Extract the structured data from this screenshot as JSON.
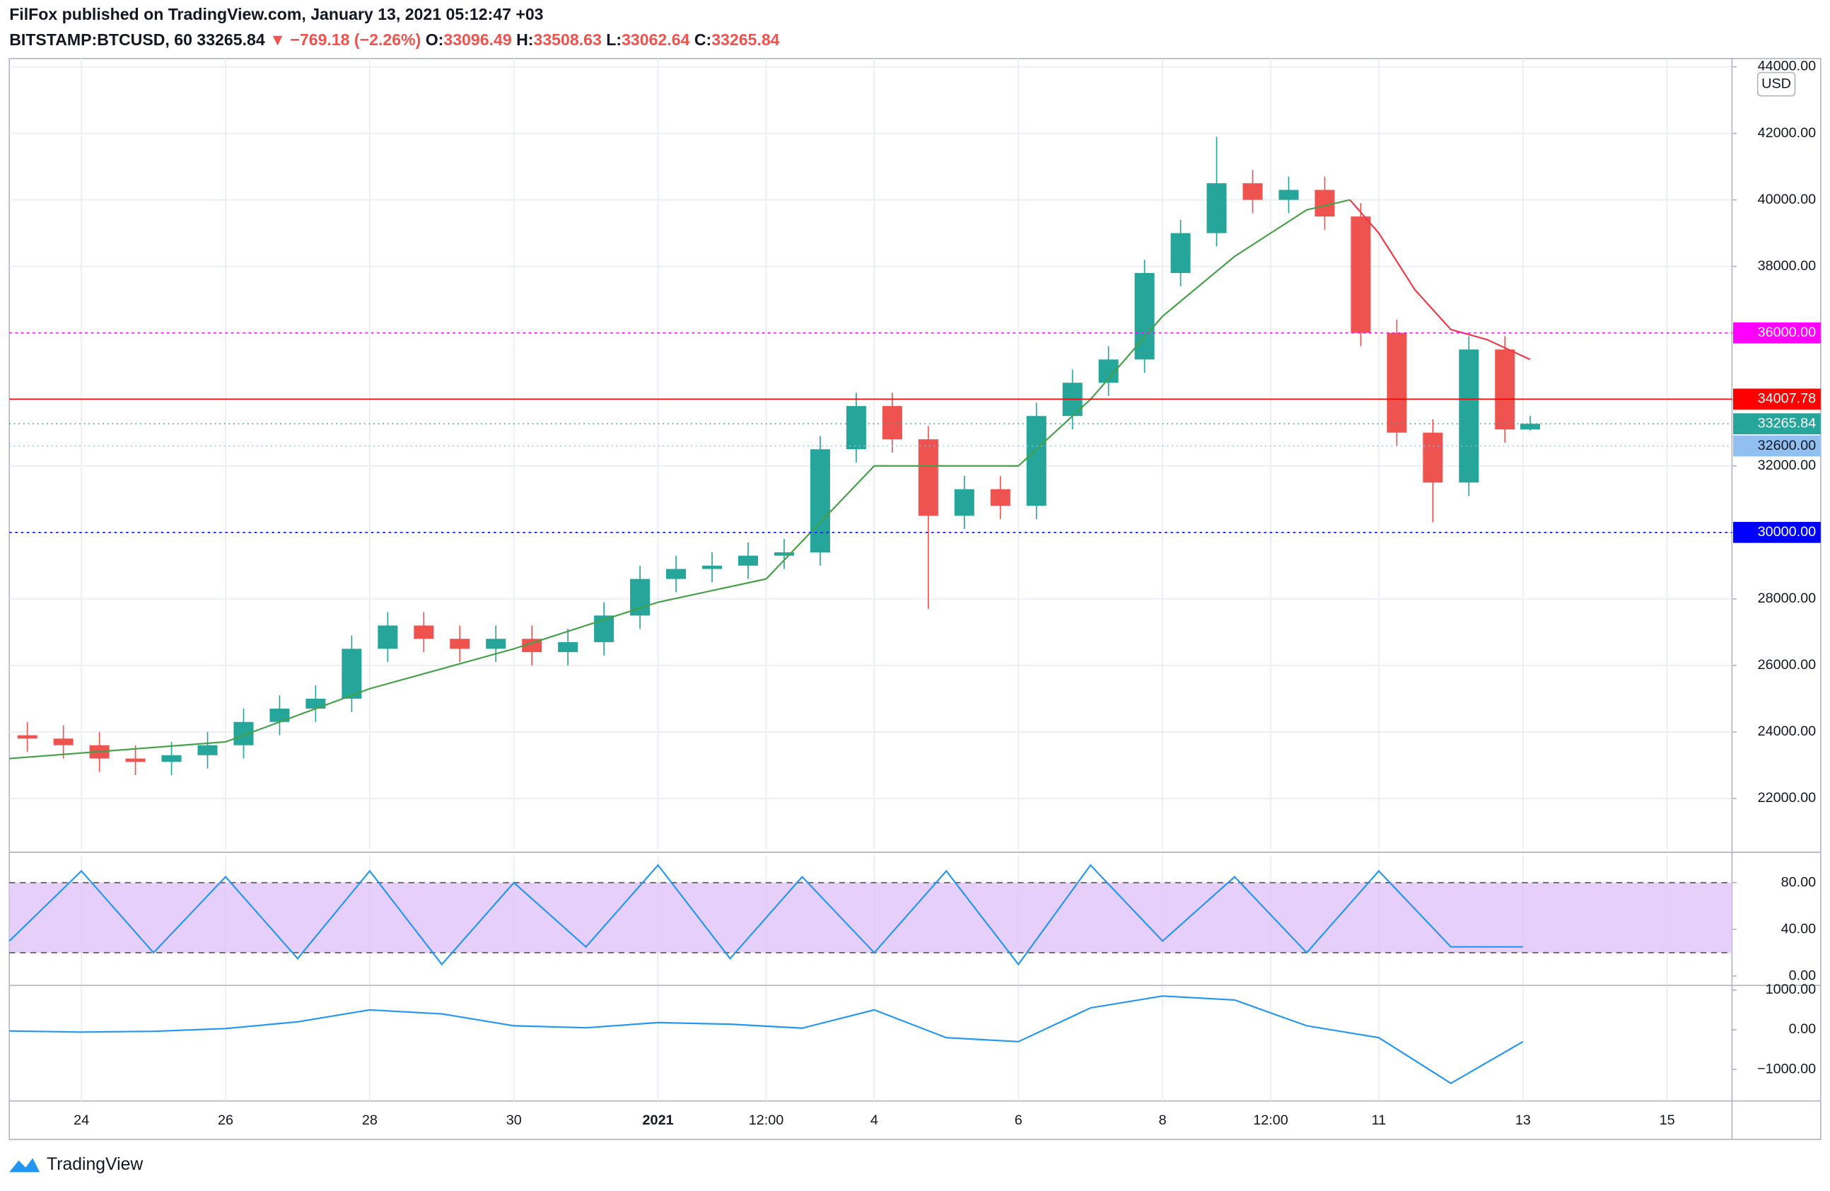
{
  "header": {
    "title": "FilFox published on TradingView.com, January 13, 2021 05:12:47 +03",
    "symbol": "BITSTAMP:BTCUSD, 60",
    "last": "33265.84",
    "change": "▼ −769.18 (−2.26%)",
    "ohlc": [
      {
        "label": "O:",
        "value": "33096.49"
      },
      {
        "label": "H:",
        "value": "33508.63"
      },
      {
        "label": "L:",
        "value": "33062.64"
      },
      {
        "label": "C:",
        "value": "33265.84"
      }
    ]
  },
  "footer": "TradingView",
  "chart_data": [
    {
      "type": "candlestick",
      "currency": "USD",
      "up_color": "#26a69a",
      "down_color": "#ef5350",
      "grid": true,
      "x": [
        0.25,
        0.75,
        1.25,
        1.75,
        2.25,
        2.75,
        3.25,
        3.75,
        4.25,
        4.75,
        5.25,
        5.75,
        6.25,
        6.75,
        7.25,
        7.75,
        8.25,
        8.75,
        9.25,
        9.75,
        10.25,
        10.75,
        11.25,
        11.75,
        12.25,
        12.75,
        13.25,
        13.75,
        14.25,
        14.75,
        15.25,
        15.75,
        16.25,
        16.75,
        17.25,
        17.75,
        18.25,
        18.75,
        19.25,
        19.75,
        20.25,
        20.75,
        21.1
      ],
      "open": [
        23900,
        23800,
        23600,
        23200,
        23100,
        23300,
        23600,
        24300,
        24700,
        25000,
        26500,
        27200,
        26800,
        26500,
        26800,
        26400,
        26700,
        27500,
        28600,
        28900,
        29000,
        29300,
        29400,
        32500,
        33800,
        32800,
        30500,
        31300,
        30800,
        33500,
        34500,
        35200,
        37800,
        39000,
        40500,
        40000,
        40300,
        39500,
        36000,
        33000,
        31500,
        35500,
        33096.49
      ],
      "high": [
        24300,
        24200,
        24000,
        23600,
        23700,
        24000,
        24700,
        25100,
        25400,
        26900,
        27600,
        27600,
        27200,
        27200,
        27200,
        27100,
        27900,
        29000,
        29300,
        29400,
        29700,
        29800,
        32900,
        34200,
        34200,
        33200,
        31700,
        31700,
        33900,
        34900,
        35600,
        38200,
        39400,
        41900,
        40900,
        40700,
        40700,
        39900,
        36400,
        33400,
        35900,
        35900,
        33508.63
      ],
      "low": [
        23400,
        23200,
        22800,
        22700,
        22700,
        22900,
        23200,
        23900,
        24300,
        24600,
        26100,
        26400,
        26100,
        26100,
        26000,
        26000,
        26300,
        27100,
        28200,
        28500,
        28600,
        28900,
        29000,
        32100,
        32400,
        27700,
        30100,
        30400,
        30400,
        33100,
        34100,
        34800,
        37400,
        38600,
        39600,
        39600,
        39100,
        35600,
        32600,
        30300,
        31100,
        32700,
        33062.64
      ],
      "close": [
        23800,
        23600,
        23200,
        23100,
        23300,
        23600,
        24300,
        24700,
        25000,
        26500,
        27200,
        26800,
        26500,
        26800,
        26400,
        26700,
        27500,
        28600,
        28900,
        29000,
        29300,
        29400,
        32500,
        33800,
        32800,
        30500,
        31300,
        30800,
        33500,
        34500,
        35200,
        37800,
        39000,
        40500,
        40000,
        40300,
        39500,
        36000,
        33000,
        31500,
        35500,
        33100,
        33265.84
      ],
      "series": [
        {
          "color": "#43a047",
          "x": [
            0,
            3,
            5,
            7,
            9,
            10.5,
            12,
            13,
            14,
            15,
            16,
            17,
            18,
            18.6
          ],
          "values": [
            23200,
            23700,
            25300,
            26500,
            27900,
            28600,
            32000,
            32000,
            32000,
            34000,
            36500,
            38300,
            39700,
            40000
          ]
        },
        {
          "color": "#f23645",
          "x": [
            18.6,
            19,
            19.5,
            20,
            20.5,
            21.1
          ],
          "values": [
            40000,
            39000,
            37300,
            36100,
            35800,
            35200
          ]
        }
      ],
      "levels": [
        {
          "value": 36000,
          "label": "36000.00",
          "color": "#ff00ff",
          "dash": "2 3"
        },
        {
          "value": 34007.78,
          "label": "34007.78",
          "color": "#ff0000",
          "dash": ""
        },
        {
          "value": 33265.84,
          "label": "33265.84",
          "color": "#26a69a",
          "dash": "1 3"
        },
        {
          "value": 32600,
          "label": "32600.00",
          "color": "#90bff0",
          "dash": "1 3"
        },
        {
          "value": 30000,
          "label": "30000.00",
          "color": "#0000ff",
          "dash": "2 3"
        }
      ],
      "xlim": [
        0,
        23.9
      ],
      "ylim": [
        20450,
        44250
      ],
      "yticks": [
        {
          "value": 22000,
          "label": "22000.00"
        },
        {
          "value": 24000,
          "label": "24000.00"
        },
        {
          "value": 26000,
          "label": "26000.00"
        },
        {
          "value": 28000,
          "label": "28000.00"
        },
        {
          "value": 30000,
          "label": "30000.00"
        },
        {
          "value": 32000,
          "label": "32000.00"
        },
        {
          "value": 34000,
          "label": "34000.00"
        },
        {
          "value": 36000,
          "label": "36000.00"
        },
        {
          "value": 38000,
          "label": "38000.00"
        },
        {
          "value": 40000,
          "label": "40000.00"
        },
        {
          "value": 42000,
          "label": "42000.00"
        },
        {
          "value": 44000,
          "label": "44000.00"
        }
      ],
      "xticks": [
        {
          "value": 1,
          "label": "24"
        },
        {
          "value": 3,
          "label": "26"
        },
        {
          "value": 5,
          "label": "28"
        },
        {
          "value": 7,
          "label": "30"
        },
        {
          "value": 9,
          "label": "2021"
        },
        {
          "value": 10.5,
          "label": "12:00"
        },
        {
          "value": 12,
          "label": "4"
        },
        {
          "value": 14,
          "label": "6"
        },
        {
          "value": 16,
          "label": "8"
        },
        {
          "value": 17.5,
          "label": "12:00"
        },
        {
          "value": 19,
          "label": "11"
        },
        {
          "value": 21,
          "label": "13"
        },
        {
          "value": 23,
          "label": "15"
        }
      ]
    },
    {
      "type": "line",
      "band": [
        20,
        80
      ],
      "band_color": "#e1c3fa",
      "xlim": [
        0,
        23.9
      ],
      "ylim": [
        -7,
        103
      ],
      "yticks": [
        {
          "value": 0,
          "label": "0.00"
        },
        {
          "value": 40,
          "label": "40.00"
        },
        {
          "value": 80,
          "label": "80.00"
        }
      ],
      "series": [
        {
          "color": "#2196f3",
          "x": [
            0,
            1,
            2,
            3,
            4,
            5,
            6,
            7,
            8,
            9,
            10,
            11,
            12,
            13,
            14,
            15,
            16,
            17,
            18,
            19,
            20,
            21
          ],
          "values": [
            30,
            90,
            20,
            85,
            15,
            90,
            10,
            80,
            25,
            95,
            15,
            85,
            20,
            90,
            10,
            95,
            30,
            85,
            20,
            90,
            25,
            25
          ]
        }
      ]
    },
    {
      "type": "line",
      "xlim": [
        0,
        23.9
      ],
      "ylim": [
        -1794,
        1088
      ],
      "yticks": [
        {
          "value": -1000,
          "label": "−1000.00"
        },
        {
          "value": 0,
          "label": "0.00"
        },
        {
          "value": 1000,
          "label": "1000.00"
        }
      ],
      "series": [
        {
          "color": "#2196f3",
          "x": [
            0,
            1,
            2,
            3,
            4,
            5,
            6,
            7,
            8,
            9,
            10,
            11,
            12,
            13,
            14,
            15,
            16,
            17,
            18,
            19,
            20,
            21
          ],
          "values": [
            -30,
            -60,
            -40,
            30,
            200,
            500,
            400,
            100,
            50,
            180,
            140,
            40,
            500,
            -200,
            -300,
            550,
            850,
            750,
            100,
            -200,
            -1350,
            -300
          ]
        }
      ]
    }
  ]
}
